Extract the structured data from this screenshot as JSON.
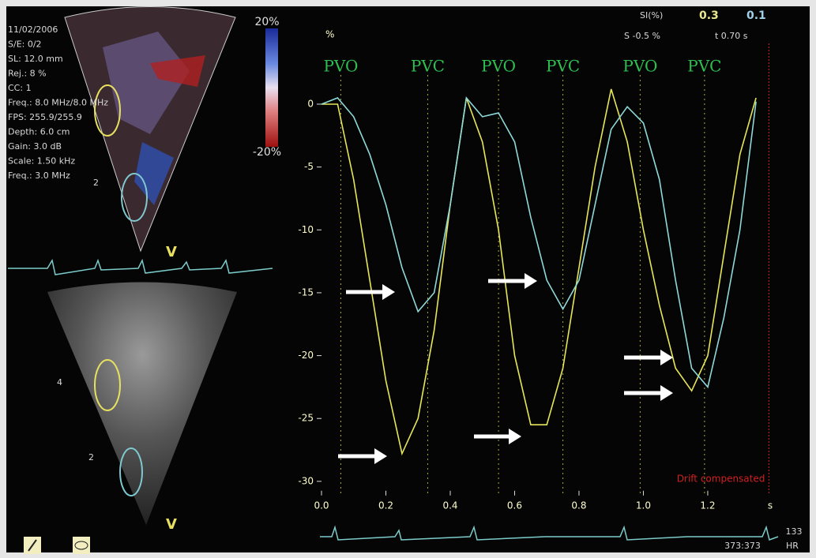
{
  "chart_data": {
    "type": "line",
    "x": [
      0,
      0.05,
      0.1,
      0.15,
      0.2,
      0.25,
      0.3,
      0.35,
      0.4,
      0.45,
      0.5,
      0.55,
      0.6,
      0.65,
      0.7,
      0.75,
      0.8,
      0.85,
      0.9,
      0.95,
      1.0,
      1.05,
      1.1,
      1.15,
      1.2,
      1.25,
      1.3,
      1.35
    ],
    "series": [
      {
        "color": "#e6e65a",
        "values": [
          0,
          0,
          -6,
          -14,
          -22,
          -27.8,
          -25,
          -18,
          -8,
          0.5,
          -3,
          -10,
          -20,
          -25.5,
          -25.5,
          -21,
          -13,
          -5,
          1.2,
          -3,
          -10,
          -16,
          -21,
          -22.8,
          -20,
          -12,
          -4,
          0.5
        ]
      },
      {
        "color": "#8fd8d8",
        "values": [
          0,
          0.5,
          -1,
          -4,
          -8,
          -13,
          -16.5,
          -15,
          -8,
          0.5,
          -1,
          -0.7,
          -3,
          -9,
          -14,
          -16.3,
          -14,
          -8,
          -2,
          -0.2,
          -1.5,
          -6,
          -14,
          -21,
          -22.5,
          -17,
          -10,
          0.2
        ]
      }
    ],
    "xlim": [
      0,
      1.42
    ],
    "ylim": [
      -31,
      6
    ],
    "xticks": [
      {
        "value": 0,
        "label": "0.0"
      },
      0.2,
      0.4,
      0.6,
      0.8,
      {
        "value": 1,
        "label": "1.0"
      },
      1.2
    ],
    "yticks": [
      0,
      -5,
      -10,
      -15,
      -20,
      -25,
      -30
    ],
    "x_label": "s",
    "y_label": "%",
    "events": [
      {
        "label": "PVO",
        "x": 0.06
      },
      {
        "label": "PVC",
        "x": 0.33
      },
      {
        "label": "PVO",
        "x": 0.55
      },
      {
        "label": "PVC",
        "x": 0.75
      },
      {
        "label": "PVO",
        "x": 0.99
      },
      {
        "label": "PVC",
        "x": 1.19
      }
    ],
    "marker_x": 1.39,
    "marker_label": "Drift compensated"
  },
  "header": {
    "si_label": "SI(%)",
    "si_1": "0.3",
    "si_2": "0.1",
    "strain": "S -0.5 %",
    "time": "t 0.70 s"
  },
  "footer": {
    "hr_value": "133",
    "frames": "373:373",
    "hr_label": "HR"
  },
  "panel": {
    "info": [
      "11/02/2006",
      "S/E: 0/2",
      "SL: 12.0 mm",
      "Rej.: 8 %",
      "CC: 1",
      "Freq.: 8.0 MHz/8.0 MHz",
      "FPS: 255.9/255.9",
      "Depth: 6.0 cm",
      "Gain: 3.0 dB",
      "Scale: 1.50 kHz",
      "Freq.: 3.0 MHz"
    ],
    "scale_top": "20%",
    "scale_bottom": "-20%",
    "view_top": "V",
    "view_bottom": "V",
    "seg_top": "2",
    "seg_1": "4",
    "seg_2": "2"
  }
}
